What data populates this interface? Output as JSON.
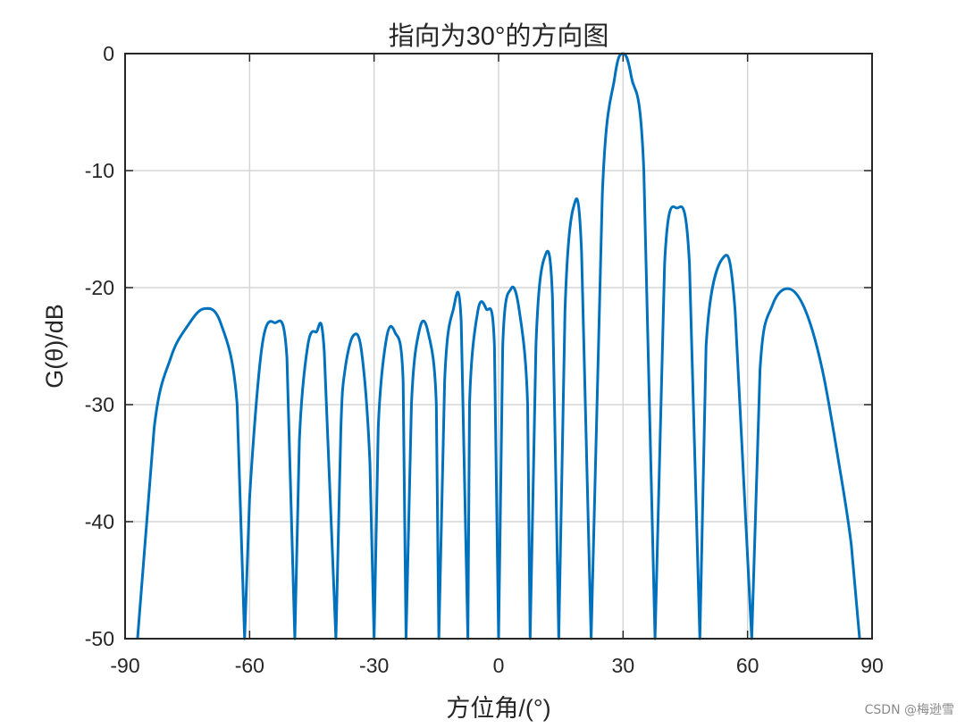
{
  "chart_data": {
    "type": "line",
    "title": "指向为30°的方向图",
    "xlabel": "方位角/(°)",
    "ylabel": "G(θ)/dB",
    "xlim": [
      -90,
      90
    ],
    "ylim": [
      -50,
      0
    ],
    "xticks": [
      -90,
      -60,
      -30,
      0,
      30,
      60,
      90
    ],
    "yticks": [
      0,
      -10,
      -20,
      -30,
      -40,
      -50
    ],
    "grid": true,
    "line_color": "#0072BD",
    "series": [
      {
        "values_note": "",
        "x": [
          -87,
          -83,
          -79,
          -75,
          -71,
          -67,
          -63,
          -61.2,
          -60,
          -57,
          -54,
          -51,
          -49.1,
          -48,
          -46,
          -44,
          -42,
          -39.2,
          -38,
          -37,
          -35,
          -33,
          -31,
          -30,
          -29,
          -27,
          -25,
          -23,
          -22.3,
          -21,
          -19,
          -17,
          -15,
          -14.4,
          -13,
          -11,
          -9,
          -7.4,
          -7,
          -5,
          -3,
          -1,
          0,
          1,
          3,
          5,
          7,
          7.6,
          9,
          11,
          13,
          14.5,
          16,
          18,
          20,
          22.3,
          25,
          28,
          30,
          32,
          35,
          37.7,
          40,
          43,
          46,
          48.5,
          50,
          54,
          57,
          61,
          63,
          66,
          70,
          74,
          78,
          82,
          85,
          87
        ],
        "y": [
          -50,
          -32,
          -26,
          -23.3,
          -21.8,
          -23,
          -30,
          -50,
          -38,
          -25,
          -23,
          -26,
          -50,
          -33,
          -25,
          -23.8,
          -25.5,
          -50,
          -32,
          -27,
          -24.1,
          -25.5,
          -35,
          -50,
          -32,
          -24.3,
          -23.8,
          -28,
          -50,
          -30,
          -23.5,
          -23.8,
          -30,
          -50,
          -28,
          -22,
          -23,
          -50,
          -30,
          -22,
          -21.8,
          -25,
          -50,
          -25,
          -20.1,
          -22,
          -30,
          -50,
          -25,
          -17.5,
          -21,
          -50,
          -22,
          -13.2,
          -17,
          -50,
          -12,
          -2,
          0,
          -2,
          -10,
          -50,
          -18,
          -13.2,
          -18,
          -50,
          -25,
          -17.5,
          -22,
          -50,
          -27,
          -21.5,
          -20.1,
          -22,
          -27,
          -35,
          -42,
          -50
        ]
      }
    ]
  },
  "watermark": "CSDN @梅逊雪"
}
